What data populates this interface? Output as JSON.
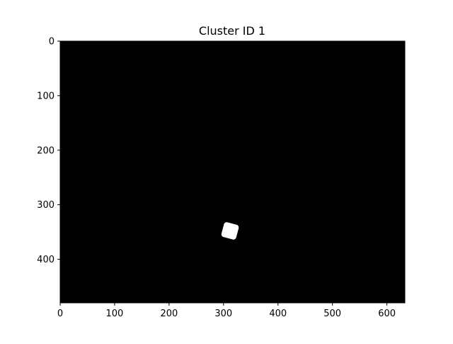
{
  "chart_data": {
    "type": "heatmap",
    "title": "Cluster ID 1",
    "xlabel": "",
    "ylabel": "",
    "xlim": [
      0,
      633
    ],
    "ylim": [
      480,
      0
    ],
    "x_ticks": [
      0,
      100,
      200,
      300,
      400,
      500,
      600
    ],
    "y_ticks": [
      0,
      100,
      200,
      300,
      400
    ],
    "grid": false,
    "colormap": "gray",
    "background_value": 0,
    "region": {
      "value": 1,
      "shape": "rounded-rotated-square",
      "center": [
        312,
        348
      ],
      "half_size": 14,
      "rotation_deg": 15
    }
  },
  "colors": {
    "background": "#000000",
    "foreground": "#ffffff"
  }
}
